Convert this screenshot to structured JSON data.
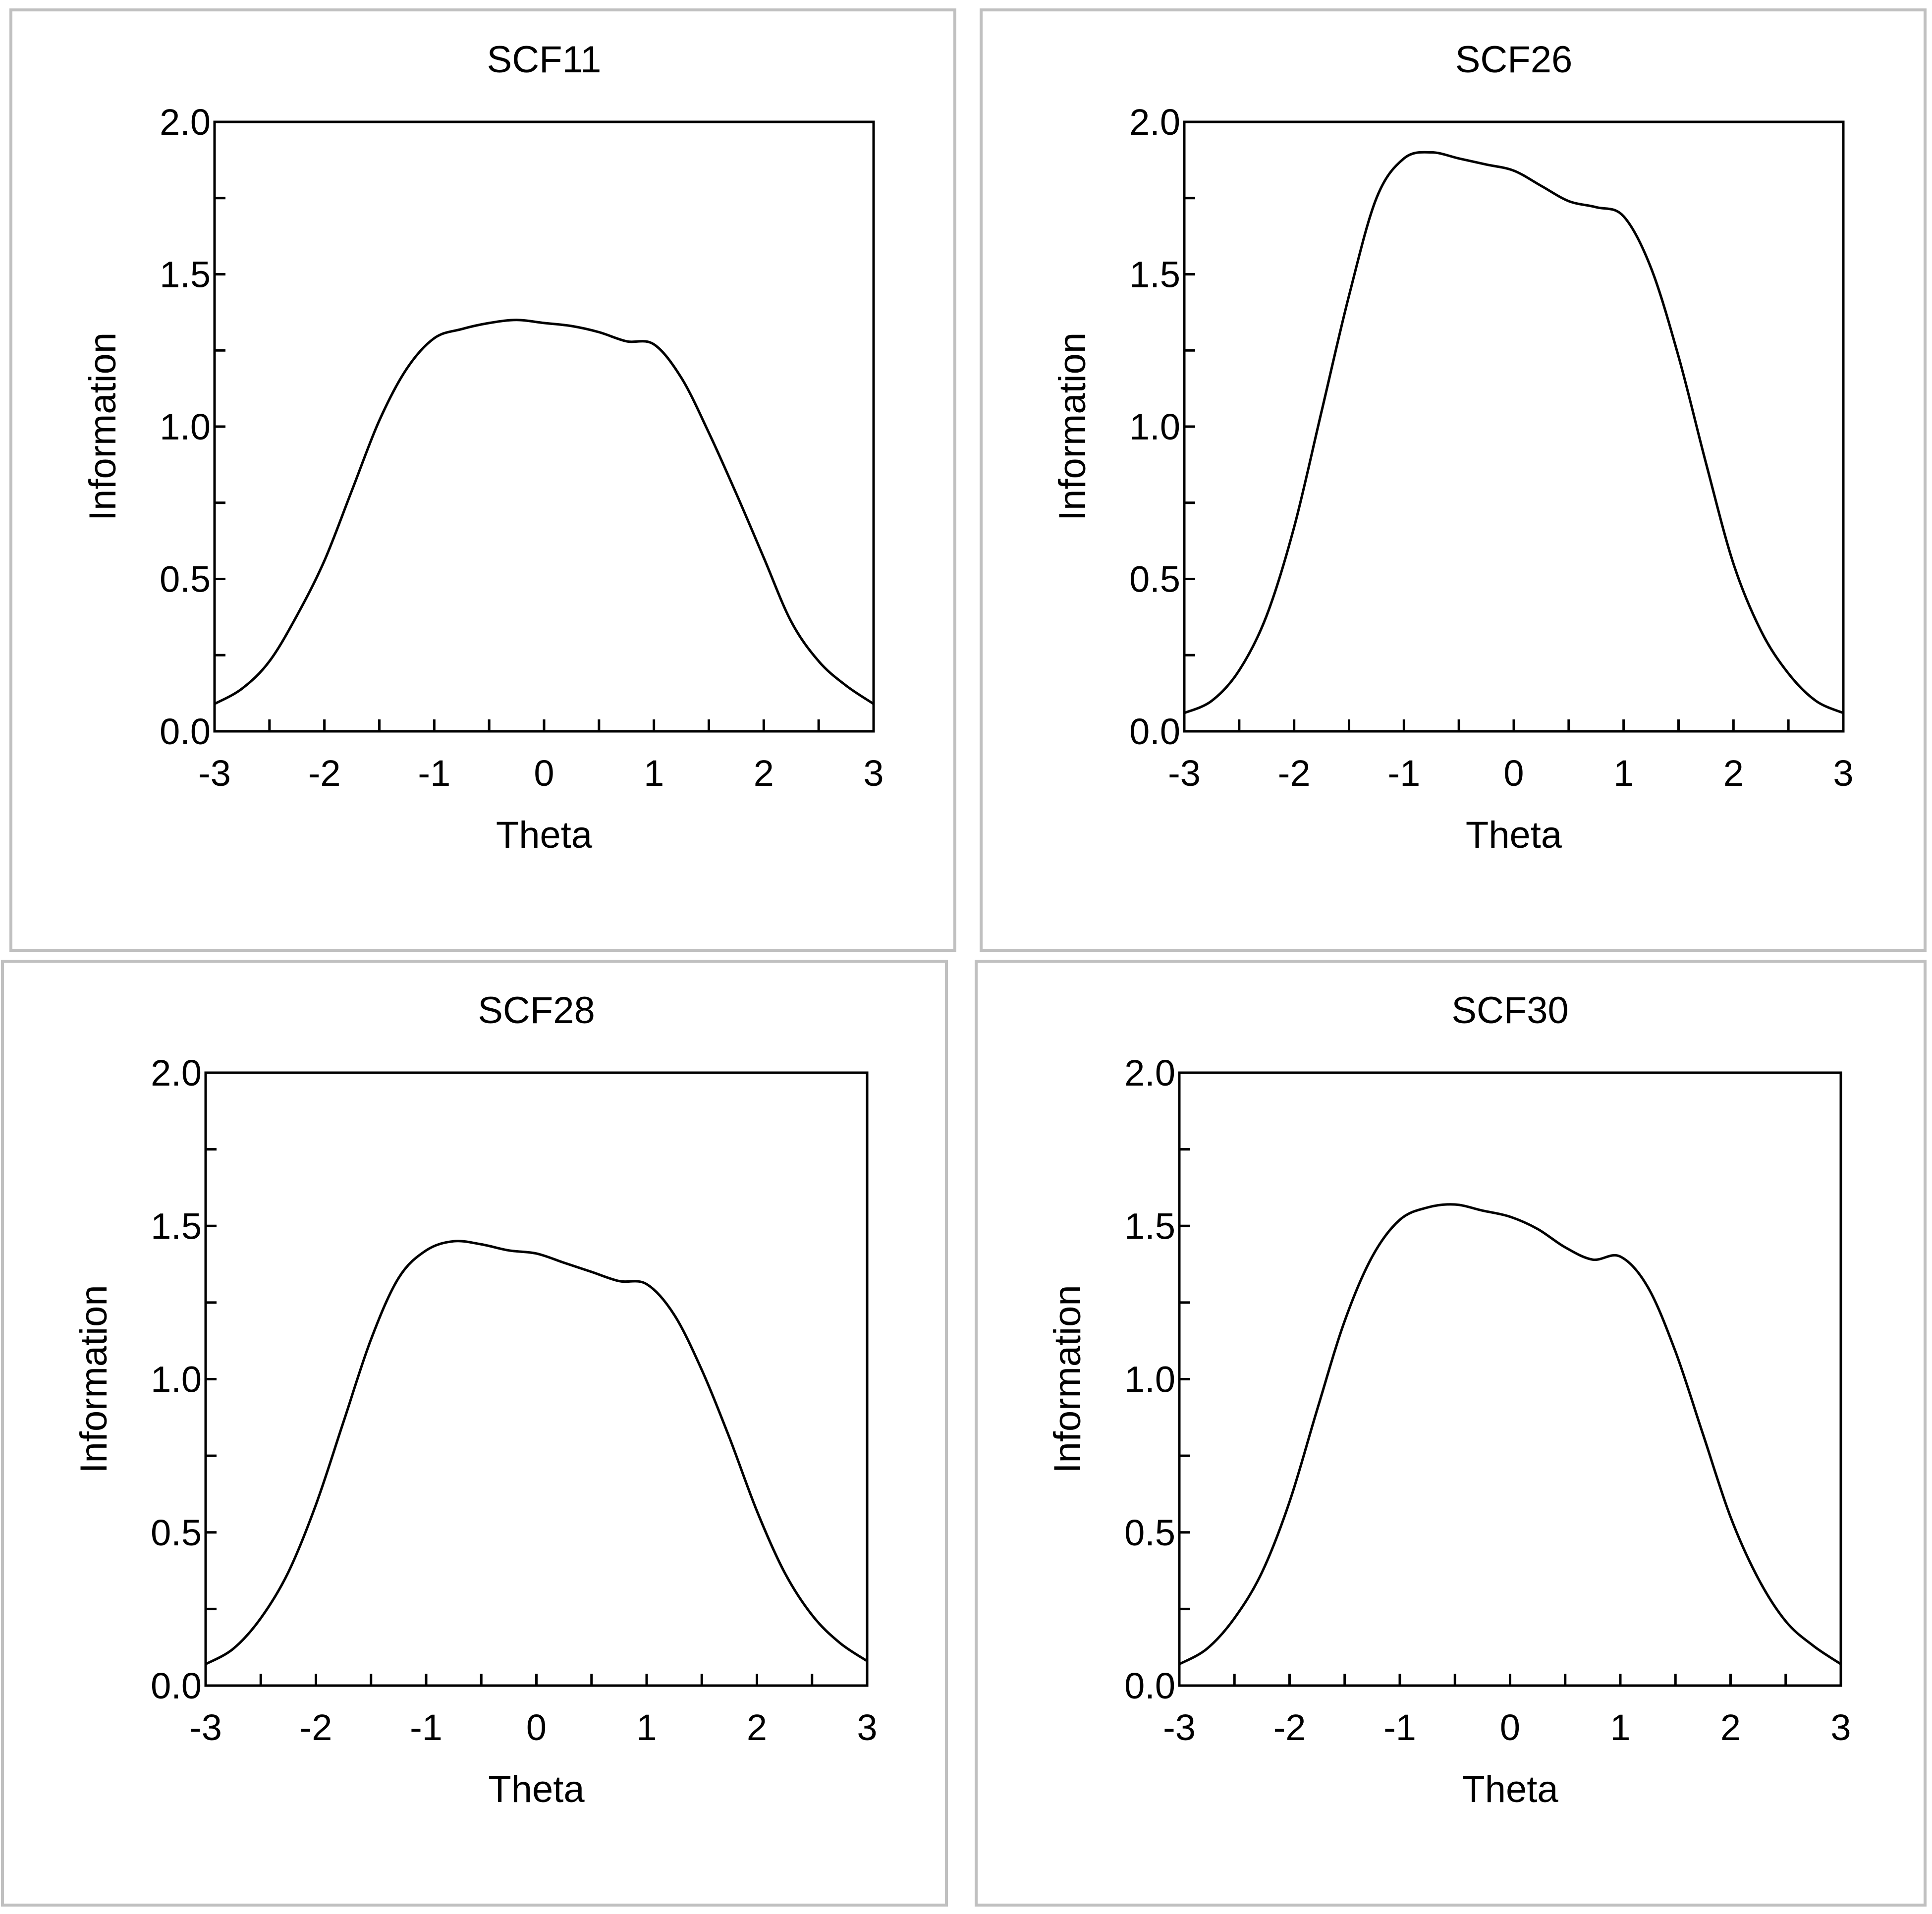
{
  "chart_data": [
    {
      "type": "line",
      "title": "SCF11",
      "xlabel": "Theta",
      "ylabel": "Information",
      "xlim": [
        -3,
        3
      ],
      "ylim": [
        0,
        2
      ],
      "x_tick_labels": [
        "-3",
        "-2",
        "-1",
        "0",
        "1",
        "2",
        "3"
      ],
      "y_tick_labels": [
        "0.0",
        "0.5",
        "1.0",
        "1.5",
        "2.0"
      ],
      "grid": false,
      "series": [
        {
          "name": "SCF11",
          "x": [
            -3,
            -2.75,
            -2.5,
            -2.25,
            -2,
            -1.75,
            -1.5,
            -1.25,
            -1,
            -0.75,
            -0.5,
            -0.25,
            0,
            0.25,
            0.5,
            0.75,
            1,
            1.25,
            1.5,
            1.75,
            2,
            2.25,
            2.5,
            2.75,
            3
          ],
          "values": [
            0.09,
            0.14,
            0.23,
            0.38,
            0.56,
            0.79,
            1.02,
            1.19,
            1.29,
            1.32,
            1.34,
            1.35,
            1.34,
            1.33,
            1.31,
            1.28,
            1.27,
            1.16,
            0.98,
            0.78,
            0.57,
            0.36,
            0.23,
            0.15,
            0.09
          ]
        }
      ]
    },
    {
      "type": "line",
      "title": "SCF26",
      "xlabel": "Theta",
      "ylabel": "Information",
      "xlim": [
        -3,
        3
      ],
      "ylim": [
        0,
        2
      ],
      "x_tick_labels": [
        "-3",
        "-2",
        "-1",
        "0",
        "1",
        "2",
        "3"
      ],
      "y_tick_labels": [
        "0.0",
        "0.5",
        "1.0",
        "1.5",
        "2.0"
      ],
      "grid": false,
      "series": [
        {
          "name": "SCF26",
          "x": [
            -3,
            -2.75,
            -2.5,
            -2.25,
            -2,
            -1.75,
            -1.5,
            -1.25,
            -1,
            -0.75,
            -0.5,
            -0.25,
            0,
            0.25,
            0.5,
            0.75,
            1,
            1.25,
            1.5,
            1.75,
            2,
            2.25,
            2.5,
            2.75,
            3
          ],
          "values": [
            0.06,
            0.1,
            0.2,
            0.38,
            0.67,
            1.05,
            1.43,
            1.75,
            1.88,
            1.9,
            1.88,
            1.86,
            1.84,
            1.79,
            1.74,
            1.72,
            1.69,
            1.52,
            1.23,
            0.88,
            0.55,
            0.33,
            0.19,
            0.1,
            0.06
          ]
        }
      ]
    },
    {
      "type": "line",
      "title": "SCF28",
      "xlabel": "Theta",
      "ylabel": "Information",
      "xlim": [
        -3,
        3
      ],
      "ylim": [
        0,
        2
      ],
      "x_tick_labels": [
        "-3",
        "-2",
        "-1",
        "0",
        "1",
        "2",
        "3"
      ],
      "y_tick_labels": [
        "0.0",
        "0.5",
        "1.0",
        "1.5",
        "2.0"
      ],
      "grid": false,
      "series": [
        {
          "name": "SCF28",
          "x": [
            -3,
            -2.75,
            -2.5,
            -2.25,
            -2,
            -1.75,
            -1.5,
            -1.25,
            -1,
            -0.75,
            -0.5,
            -0.25,
            0,
            0.25,
            0.5,
            0.75,
            1,
            1.25,
            1.5,
            1.75,
            2,
            2.25,
            2.5,
            2.75,
            3
          ],
          "values": [
            0.07,
            0.12,
            0.22,
            0.37,
            0.59,
            0.86,
            1.13,
            1.33,
            1.42,
            1.45,
            1.44,
            1.42,
            1.41,
            1.38,
            1.35,
            1.32,
            1.31,
            1.21,
            1.03,
            0.81,
            0.57,
            0.37,
            0.23,
            0.14,
            0.08
          ]
        }
      ]
    },
    {
      "type": "line",
      "title": "SCF30",
      "xlabel": "Theta",
      "ylabel": "Information",
      "xlim": [
        -3,
        3
      ],
      "ylim": [
        0,
        2
      ],
      "x_tick_labels": [
        "-3",
        "-2",
        "-1",
        "0",
        "1",
        "2",
        "3"
      ],
      "y_tick_labels": [
        "0.0",
        "0.5",
        "1.0",
        "1.5",
        "2.0"
      ],
      "grid": false,
      "series": [
        {
          "name": "SCF30",
          "x": [
            -3,
            -2.75,
            -2.5,
            -2.25,
            -2,
            -1.75,
            -1.5,
            -1.25,
            -1,
            -0.75,
            -0.5,
            -0.25,
            0,
            0.25,
            0.5,
            0.75,
            1,
            1.25,
            1.5,
            1.75,
            2,
            2.25,
            2.5,
            2.75,
            3
          ],
          "values": [
            0.07,
            0.12,
            0.22,
            0.37,
            0.6,
            0.9,
            1.19,
            1.4,
            1.52,
            1.56,
            1.57,
            1.55,
            1.53,
            1.49,
            1.43,
            1.39,
            1.4,
            1.3,
            1.09,
            0.82,
            0.55,
            0.35,
            0.21,
            0.13,
            0.07
          ]
        }
      ]
    }
  ]
}
